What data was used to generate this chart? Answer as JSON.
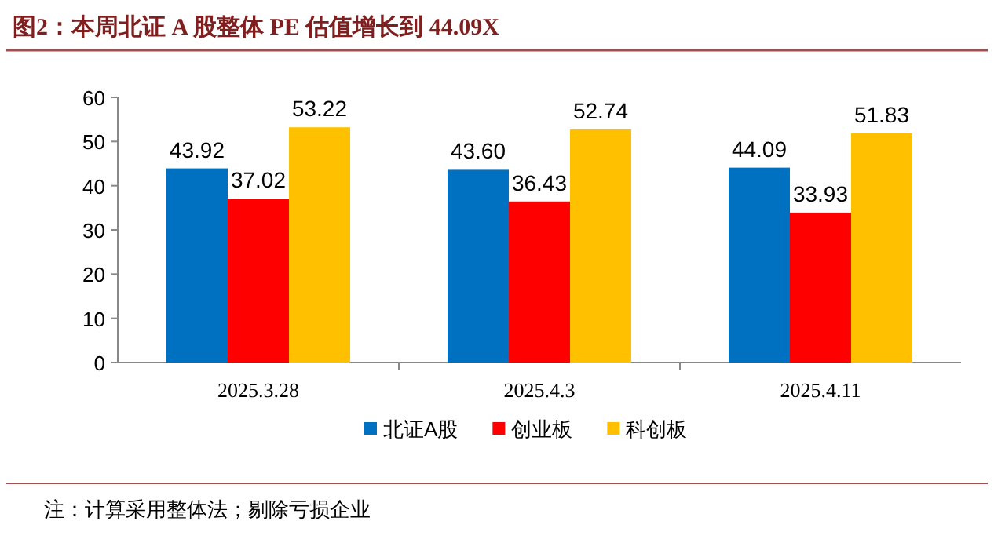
{
  "chart_data": {
    "type": "bar",
    "title": "图2：本周北证 A 股整体 PE 估值增长到 44.09X",
    "categories": [
      "2025.3.28",
      "2025.4.3",
      "2025.4.11"
    ],
    "series": [
      {
        "name": "北证A股",
        "color": "#0070c0",
        "values": [
          43.92,
          43.6,
          44.09
        ],
        "value_labels": [
          "43.92",
          "43.60",
          "44.09"
        ]
      },
      {
        "name": "创业板",
        "color": "#ff0000",
        "values": [
          37.02,
          36.43,
          33.93
        ]
      },
      {
        "name": "科创板",
        "color": "#ffc000",
        "values": [
          53.22,
          52.74,
          51.83
        ]
      }
    ],
    "ylim": [
      0,
      60
    ],
    "yticks": [
      0,
      10,
      20,
      30,
      40,
      50,
      60
    ],
    "grid": false,
    "legend": "bottom",
    "data_labels": true,
    "annotations": [
      "注：计算采用整体法；剔除亏损企业"
    ]
  }
}
